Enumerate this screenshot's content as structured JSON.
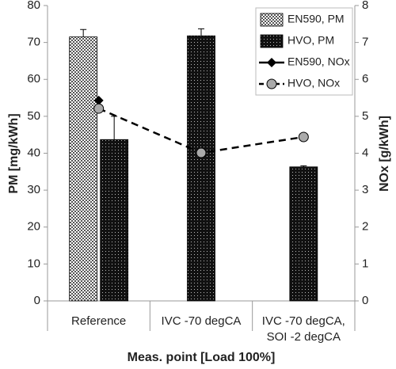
{
  "chart_data": {
    "type": "bar",
    "x_label": "Meas. point [Load 100%]",
    "y_label": "PM [mg/kWh]",
    "y2_label": "NOx [g/kWh]",
    "categories": [
      "Reference",
      "IVC -70 degCA",
      "IVC -70 degCA,\nSOI -2 degCA"
    ],
    "ylim": [
      0,
      80
    ],
    "yticks": [
      0,
      10,
      20,
      30,
      40,
      50,
      60,
      70,
      80
    ],
    "y2lim": [
      0,
      8
    ],
    "y2ticks": [
      0,
      1,
      2,
      3,
      4,
      5,
      6,
      7,
      8
    ],
    "legend": "upper right",
    "series": [
      {
        "name": "EN590, PM",
        "type": "bar",
        "pattern": "checker",
        "color": "#000000",
        "values": [
          71.5,
          null,
          null
        ],
        "errors": [
          2,
          null,
          null
        ]
      },
      {
        "name": "HVO, PM",
        "type": "bar",
        "pattern": "dots",
        "color": "#000000",
        "values": [
          43.7,
          71.8,
          36.3
        ],
        "errors": [
          6.3,
          1.9,
          0.3
        ]
      },
      {
        "name": "EN590, NOx",
        "type": "line",
        "axis": "y2",
        "marker": "diamond",
        "color": "#000000",
        "values": [
          5.43,
          null,
          null
        ]
      },
      {
        "name": "HVO, NOx",
        "type": "line",
        "axis": "y2",
        "marker": "circle",
        "dashed": true,
        "color": "#000000",
        "values": [
          5.21,
          4.01,
          4.44
        ]
      }
    ]
  }
}
